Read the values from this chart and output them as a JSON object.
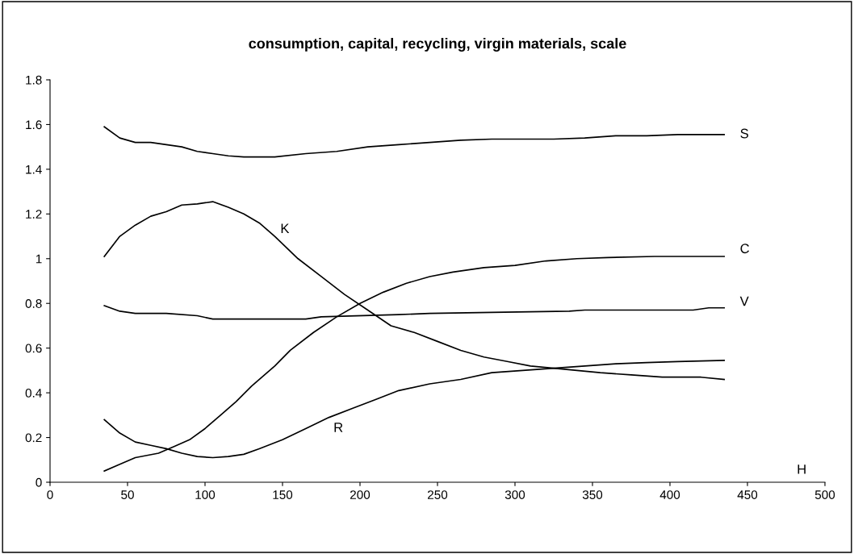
{
  "chart_data": {
    "type": "line",
    "title": "consumption, capital, recycling, virgin materials, scale",
    "xlabel": "H",
    "xlim": [
      0,
      500
    ],
    "xticks": [
      0,
      50,
      100,
      150,
      200,
      250,
      300,
      350,
      400,
      450,
      500
    ],
    "ylim": [
      0,
      1.8
    ],
    "yticks": [
      0,
      0.2,
      0.4,
      0.6,
      0.8,
      1,
      1.2,
      1.4,
      1.6,
      1.8
    ],
    "grid": false,
    "legend": false,
    "marker": "none",
    "line_style": "solid",
    "series": [
      {
        "name": "S",
        "color": "#000000",
        "x": [
          35,
          45,
          55,
          65,
          75,
          85,
          95,
          105,
          115,
          125,
          145,
          165,
          185,
          205,
          225,
          245,
          265,
          285,
          305,
          325,
          345,
          365,
          385,
          405,
          435
        ],
        "values": [
          1.59,
          1.54,
          1.52,
          1.52,
          1.51,
          1.5,
          1.48,
          1.47,
          1.46,
          1.455,
          1.455,
          1.47,
          1.48,
          1.5,
          1.51,
          1.52,
          1.53,
          1.535,
          1.535,
          1.535,
          1.54,
          1.55,
          1.55,
          1.555,
          1.555
        ]
      },
      {
        "name": "K",
        "color": "#000000",
        "x": [
          35,
          45,
          55,
          65,
          75,
          85,
          95,
          105,
          115,
          125,
          135,
          145,
          160,
          175,
          190,
          205,
          220,
          235,
          250,
          265,
          280,
          295,
          310,
          325,
          340,
          355,
          375,
          395,
          420,
          435
        ],
        "values": [
          1.01,
          1.1,
          1.15,
          1.19,
          1.21,
          1.24,
          1.245,
          1.255,
          1.23,
          1.2,
          1.16,
          1.1,
          1.0,
          0.92,
          0.84,
          0.77,
          0.7,
          0.67,
          0.63,
          0.59,
          0.56,
          0.54,
          0.52,
          0.51,
          0.5,
          0.49,
          0.48,
          0.47,
          0.47,
          0.46
        ]
      },
      {
        "name": "C",
        "color": "#000000",
        "x": [
          35,
          45,
          55,
          70,
          80,
          90,
          100,
          110,
          120,
          130,
          145,
          155,
          170,
          185,
          200,
          215,
          230,
          245,
          260,
          280,
          300,
          320,
          340,
          360,
          390,
          435
        ],
        "values": [
          0.05,
          0.08,
          0.11,
          0.13,
          0.16,
          0.19,
          0.24,
          0.3,
          0.36,
          0.43,
          0.52,
          0.59,
          0.67,
          0.74,
          0.8,
          0.85,
          0.89,
          0.92,
          0.94,
          0.96,
          0.97,
          0.99,
          1.0,
          1.005,
          1.01,
          1.01
        ]
      },
      {
        "name": "V",
        "color": "#000000",
        "x": [
          35,
          45,
          55,
          75,
          95,
          105,
          165,
          175,
          225,
          245,
          285,
          335,
          345,
          415,
          425,
          435
        ],
        "values": [
          0.79,
          0.765,
          0.755,
          0.755,
          0.745,
          0.73,
          0.73,
          0.74,
          0.75,
          0.755,
          0.76,
          0.765,
          0.77,
          0.77,
          0.78,
          0.78
        ]
      },
      {
        "name": "R",
        "color": "#000000",
        "x": [
          35,
          45,
          55,
          65,
          75,
          85,
          95,
          105,
          115,
          125,
          135,
          150,
          165,
          180,
          195,
          210,
          225,
          245,
          265,
          285,
          305,
          325,
          345,
          365,
          385,
          405,
          435
        ],
        "values": [
          0.28,
          0.22,
          0.18,
          0.165,
          0.15,
          0.13,
          0.115,
          0.11,
          0.115,
          0.125,
          0.15,
          0.19,
          0.24,
          0.29,
          0.33,
          0.37,
          0.41,
          0.44,
          0.46,
          0.49,
          0.5,
          0.51,
          0.52,
          0.53,
          0.535,
          0.54,
          0.545
        ]
      }
    ]
  }
}
